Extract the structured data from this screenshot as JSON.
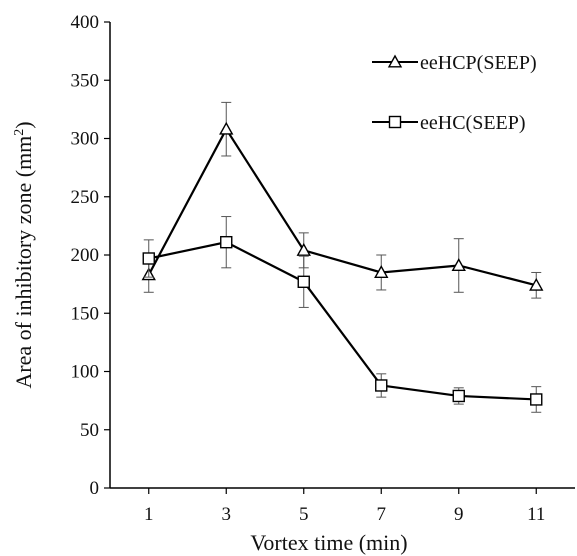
{
  "chart_data": {
    "type": "line",
    "title": "",
    "xlabel": "Vortex time (min)",
    "ylabel": "Area of inhibitory zone (mm²)",
    "ylabel_main": "Area of inhibitory zone (mm",
    "ylabel_sup": "2",
    "ylabel_close": ")",
    "x": [
      1,
      3,
      5,
      7,
      9,
      11
    ],
    "x_ticks": [
      "1",
      "3",
      "5",
      "7",
      "9",
      "11"
    ],
    "y_ticks": [
      "0",
      "50",
      "100",
      "150",
      "200",
      "250",
      "300",
      "350",
      "400"
    ],
    "ylim": [
      0,
      400
    ],
    "xlim": [
      0,
      12
    ],
    "grid": false,
    "legend_position": "top-right",
    "series": [
      {
        "name": "eeHCP(SEEP)",
        "marker": "triangle",
        "values": [
          183,
          308,
          204,
          185,
          191,
          174
        ],
        "errors": [
          15,
          23,
          15,
          15,
          23,
          11
        ]
      },
      {
        "name": "eeHC(SEEP)",
        "marker": "square",
        "values": [
          197,
          211,
          177,
          88,
          79,
          76
        ],
        "errors": [
          16,
          22,
          22,
          10,
          7,
          11
        ]
      }
    ]
  }
}
